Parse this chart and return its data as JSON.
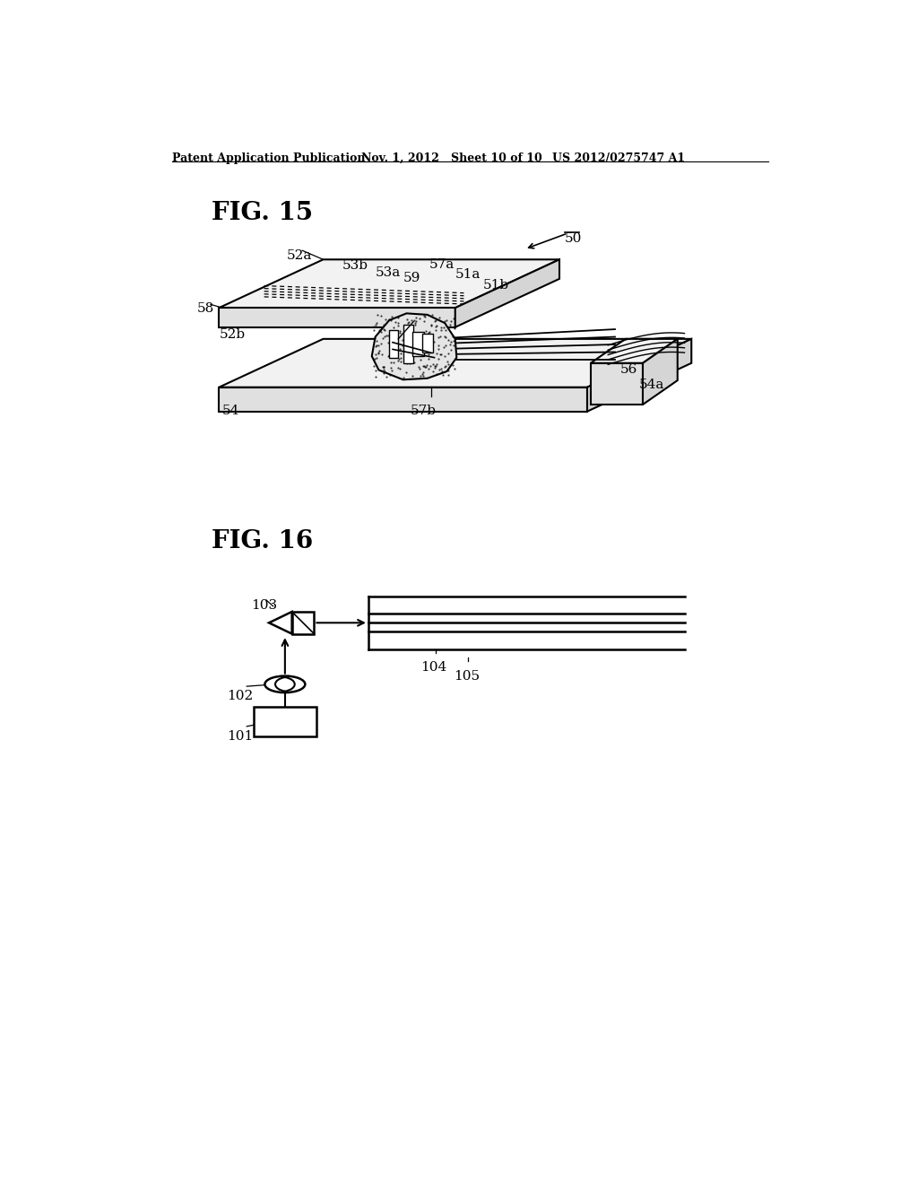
{
  "background_color": "#ffffff",
  "header_left": "Patent Application Publication",
  "header_mid": "Nov. 1, 2012   Sheet 10 of 10",
  "header_right": "US 2012/0275747 A1",
  "fig15_label": "FIG. 15",
  "fig16_label": "FIG. 16",
  "line_color": "#000000",
  "text_color": "#000000",
  "label_fontsize": 11,
  "header_fontsize": 9,
  "title_fontsize": 20
}
